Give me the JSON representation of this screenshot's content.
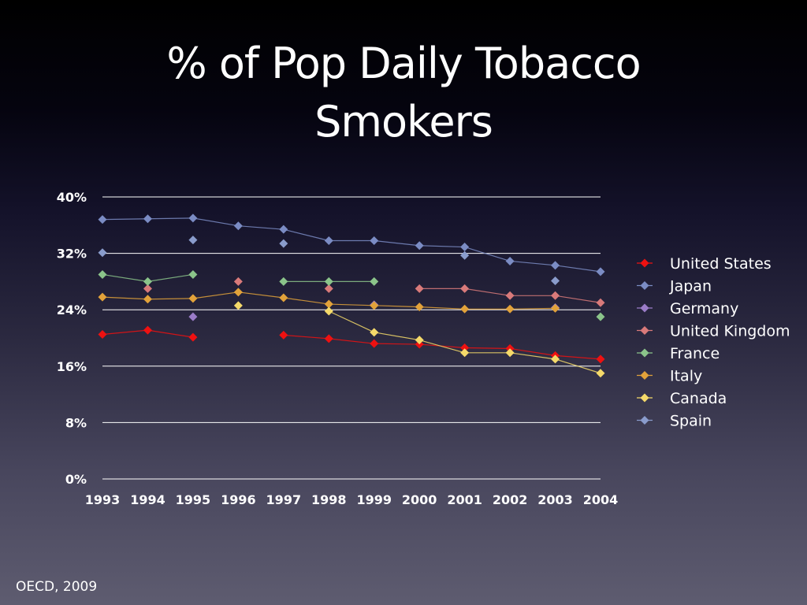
{
  "slide": {
    "title_line1": "% of Pop Daily Tobacco",
    "title_line2": "Smokers",
    "source": "OECD, 2009"
  },
  "chart_data": {
    "type": "line",
    "title": "% of Pop Daily Tobacco Smokers",
    "xlabel": "",
    "ylabel": "",
    "x": [
      1993,
      1994,
      1995,
      1996,
      1997,
      1998,
      1999,
      2000,
      2001,
      2002,
      2003,
      2004
    ],
    "x_tick_labels": [
      "1993",
      "1994",
      "1995",
      "1996",
      "1997",
      "1998",
      "1999",
      "2000",
      "2001",
      "2002",
      "2003",
      "2004"
    ],
    "ylim": [
      0,
      40
    ],
    "y_ticks": [
      0,
      8,
      16,
      24,
      32,
      40
    ],
    "y_tick_labels": [
      "0%",
      "8%",
      "16%",
      "24%",
      "32%",
      "40%"
    ],
    "grid": "horizontal",
    "legend_position": "right",
    "marker": "diamond",
    "series": [
      {
        "name": "United States",
        "color": "#ee1111",
        "values": [
          20.5,
          21.1,
          20.1,
          null,
          20.4,
          19.9,
          19.2,
          19.1,
          18.6,
          18.5,
          17.5,
          17.0
        ]
      },
      {
        "name": "Japan",
        "color": "#7b8cc4",
        "values": [
          36.8,
          36.9,
          37.0,
          35.9,
          35.4,
          33.8,
          33.8,
          33.1,
          32.9,
          30.9,
          30.3,
          29.4
        ]
      },
      {
        "name": "Germany",
        "color": "#9b7cc8",
        "values": [
          null,
          null,
          23.0,
          null,
          null,
          null,
          24.7,
          null,
          null,
          null,
          24.3,
          null
        ]
      },
      {
        "name": "United Kingdom",
        "color": "#d97a7a",
        "values": [
          null,
          27.0,
          null,
          28.0,
          null,
          27.0,
          null,
          27.0,
          27.0,
          26.0,
          26.0,
          25.0
        ]
      },
      {
        "name": "France",
        "color": "#8bc48a",
        "values": [
          29.0,
          28.0,
          29.0,
          null,
          28.0,
          28.0,
          28.0,
          null,
          null,
          null,
          null,
          23.0
        ]
      },
      {
        "name": "Italy",
        "color": "#e2a23a",
        "values": [
          25.8,
          25.5,
          25.6,
          26.5,
          25.7,
          24.8,
          24.6,
          24.4,
          24.1,
          24.1,
          24.2,
          null
        ]
      },
      {
        "name": "Canada",
        "color": "#f5da6a",
        "values": [
          null,
          null,
          null,
          24.6,
          null,
          23.8,
          20.8,
          19.7,
          17.9,
          17.9,
          17.0,
          15.0
        ]
      },
      {
        "name": "Spain",
        "color": "#8a9ccc",
        "values": [
          32.1,
          null,
          33.9,
          null,
          33.4,
          null,
          null,
          null,
          31.7,
          null,
          28.1,
          null
        ]
      }
    ]
  }
}
